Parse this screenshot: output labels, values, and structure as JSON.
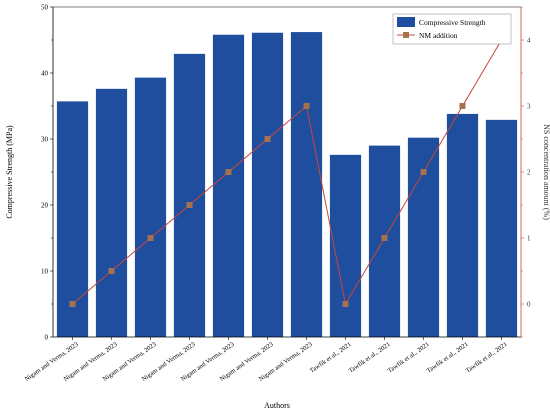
{
  "chart_data": {
    "type": "bar",
    "xlabel": "Authors",
    "ylabel": "Compressive Strength (MPa)",
    "y2label": "NS concentration amount (%)",
    "categories": [
      "Nigam and Verma, 2023",
      "Nigam and Verma, 2023",
      "Nigam and Verma, 2023",
      "Nigam and Verma, 2023",
      "Nigam and Verma, 2023",
      "Nigam and Verma, 2023",
      "Nigam and Verma, 2023",
      "Tawfik et al., 2021",
      "Tawfik et al., 2021",
      "Tawfik et al., 2021",
      "Tawfik et al., 2021",
      "Tawfik et al., 2021"
    ],
    "ylim": [
      0,
      50
    ],
    "yticks": [
      0,
      10,
      20,
      30,
      40,
      50
    ],
    "y2lim": [
      -0.5,
      4.5
    ],
    "y2ticks": [
      0,
      1,
      2,
      3,
      4
    ],
    "legend_position": "top-right",
    "series": [
      {
        "name": "Compressive Strength",
        "kind": "bar",
        "axis": "left",
        "color": "#1f4e9e",
        "values": [
          35.7,
          37.6,
          39.3,
          42.9,
          45.8,
          46.1,
          46.2,
          27.6,
          29.0,
          30.2,
          33.8,
          32.9
        ]
      },
      {
        "name": "NM addition",
        "kind": "line",
        "axis": "right",
        "color": "#c8463a",
        "marker_color": "#a5714e",
        "values": [
          0,
          0.5,
          1,
          1.5,
          2,
          2.5,
          3,
          0,
          1,
          2,
          3,
          4
        ]
      }
    ]
  }
}
